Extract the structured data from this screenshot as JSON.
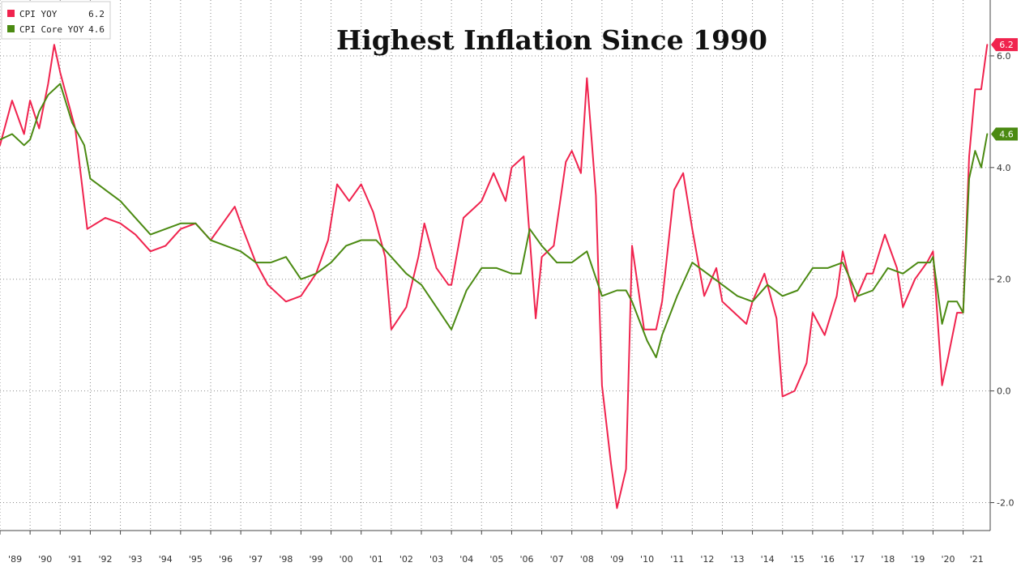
{
  "chart_data": {
    "type": "line",
    "title": "Highest Inflation Since 1990",
    "xlabel": "",
    "ylabel": "",
    "ylim": [
      -2.5,
      7.0
    ],
    "xlim": [
      1989.0,
      2021.9
    ],
    "y_ticks": [
      -2.0,
      0.0,
      2.0,
      4.0,
      6.0
    ],
    "y_tick_labels": [
      "-2.0",
      "0.0",
      "2.0",
      "4.0",
      "6.0"
    ],
    "x_ticks": [
      1989,
      1990,
      1991,
      1992,
      1993,
      1994,
      1995,
      1996,
      1997,
      1998,
      1999,
      2000,
      2001,
      2002,
      2003,
      2004,
      2005,
      2006,
      2007,
      2008,
      2009,
      2010,
      2011,
      2012,
      2013,
      2014,
      2015,
      2016,
      2017,
      2018,
      2019,
      2020,
      2021
    ],
    "x_tick_labels": [
      "'89",
      "'90",
      "'91",
      "'92",
      "'93",
      "'94",
      "'95",
      "'96",
      "'97",
      "'98",
      "'99",
      "'00",
      "'01",
      "'02",
      "'03",
      "'04",
      "'05",
      "'06",
      "'07",
      "'08",
      "'09",
      "'10",
      "'11",
      "'12",
      "'13",
      "'14",
      "'15",
      "'16",
      "'17",
      "'18",
      "'19",
      "'20",
      "'21"
    ],
    "grid": true,
    "legend_position": "top-left",
    "series": [
      {
        "name": "CPI YOY",
        "legend_value": "6.2",
        "last_label": "6.2",
        "color": "#f0234e",
        "x": [
          1989.0,
          1989.4,
          1989.8,
          1990.0,
          1990.3,
          1990.6,
          1990.8,
          1991.0,
          1991.5,
          1991.9,
          1992.5,
          1993.0,
          1993.5,
          1994.0,
          1994.5,
          1995.0,
          1995.5,
          1996.0,
          1996.4,
          1996.8,
          1997.0,
          1997.5,
          1997.9,
          1998.5,
          1999.0,
          1999.5,
          1999.9,
          2000.2,
          2000.6,
          2001.0,
          2001.4,
          2001.8,
          2002.0,
          2002.5,
          2002.9,
          2003.1,
          2003.5,
          2003.9,
          2004.0,
          2004.4,
          2004.8,
          2005.0,
          2005.4,
          2005.8,
          2006.0,
          2006.4,
          2006.8,
          2007.0,
          2007.4,
          2007.8,
          2008.0,
          2008.3,
          2008.5,
          2008.8,
          2009.0,
          2009.3,
          2009.5,
          2009.8,
          2010.0,
          2010.4,
          2010.8,
          2011.0,
          2011.4,
          2011.7,
          2012.0,
          2012.4,
          2012.8,
          2013.0,
          2013.4,
          2013.8,
          2014.0,
          2014.4,
          2014.8,
          2015.0,
          2015.4,
          2015.8,
          2016.0,
          2016.4,
          2016.8,
          2017.0,
          2017.4,
          2017.8,
          2018.0,
          2018.4,
          2018.8,
          2019.0,
          2019.4,
          2019.8,
          2020.0,
          2020.3,
          2020.5,
          2020.8,
          2021.0,
          2021.2,
          2021.4,
          2021.6,
          2021.8
        ],
        "values": [
          4.4,
          5.2,
          4.6,
          5.2,
          4.7,
          5.5,
          6.2,
          5.7,
          4.7,
          2.9,
          3.1,
          3.0,
          2.8,
          2.5,
          2.6,
          2.9,
          3.0,
          2.7,
          3.0,
          3.3,
          3.0,
          2.3,
          1.9,
          1.6,
          1.7,
          2.1,
          2.7,
          3.7,
          3.4,
          3.7,
          3.2,
          2.4,
          1.1,
          1.5,
          2.4,
          3.0,
          2.2,
          1.9,
          1.9,
          3.1,
          3.3,
          3.4,
          3.9,
          3.4,
          4.0,
          4.2,
          1.3,
          2.4,
          2.6,
          4.1,
          4.3,
          3.9,
          5.6,
          3.5,
          0.1,
          -1.3,
          -2.1,
          -1.4,
          2.6,
          1.1,
          1.1,
          1.6,
          3.6,
          3.9,
          2.9,
          1.7,
          2.2,
          1.6,
          1.4,
          1.2,
          1.6,
          2.1,
          1.3,
          -0.1,
          0.0,
          0.5,
          1.4,
          1.0,
          1.7,
          2.5,
          1.6,
          2.1,
          2.1,
          2.8,
          2.2,
          1.5,
          2.0,
          2.3,
          2.5,
          0.1,
          0.6,
          1.4,
          1.4,
          4.2,
          5.4,
          5.4,
          6.2
        ]
      },
      {
        "name": "CPI Core YOY",
        "legend_value": "4.6",
        "last_label": "4.6",
        "color": "#4b8a12",
        "x": [
          1989.0,
          1989.4,
          1989.8,
          1990.0,
          1990.3,
          1990.6,
          1991.0,
          1991.4,
          1991.8,
          1992.0,
          1992.5,
          1993.0,
          1993.5,
          1994.0,
          1994.5,
          1995.0,
          1995.5,
          1996.0,
          1996.5,
          1997.0,
          1997.5,
          1998.0,
          1998.5,
          1999.0,
          1999.5,
          2000.0,
          2000.5,
          2001.0,
          2001.5,
          2002.0,
          2002.5,
          2003.0,
          2003.5,
          2004.0,
          2004.5,
          2005.0,
          2005.5,
          2006.0,
          2006.3,
          2006.6,
          2007.0,
          2007.5,
          2008.0,
          2008.5,
          2009.0,
          2009.5,
          2009.8,
          2010.0,
          2010.5,
          2010.8,
          2011.0,
          2011.5,
          2012.0,
          2012.5,
          2013.0,
          2013.5,
          2014.0,
          2014.5,
          2015.0,
          2015.5,
          2016.0,
          2016.5,
          2017.0,
          2017.5,
          2018.0,
          2018.5,
          2019.0,
          2019.5,
          2019.9,
          2020.0,
          2020.3,
          2020.5,
          2020.8,
          2021.0,
          2021.2,
          2021.4,
          2021.6,
          2021.8
        ],
        "values": [
          4.5,
          4.6,
          4.4,
          4.5,
          5.0,
          5.3,
          5.5,
          4.8,
          4.4,
          3.8,
          3.6,
          3.4,
          3.1,
          2.8,
          2.9,
          3.0,
          3.0,
          2.7,
          2.6,
          2.5,
          2.3,
          2.3,
          2.4,
          2.0,
          2.1,
          2.3,
          2.6,
          2.7,
          2.7,
          2.4,
          2.1,
          1.9,
          1.5,
          1.1,
          1.8,
          2.2,
          2.2,
          2.1,
          2.1,
          2.9,
          2.6,
          2.3,
          2.3,
          2.5,
          1.7,
          1.8,
          1.8,
          1.6,
          0.9,
          0.6,
          1.0,
          1.7,
          2.3,
          2.1,
          1.9,
          1.7,
          1.6,
          1.9,
          1.7,
          1.8,
          2.2,
          2.2,
          2.3,
          1.7,
          1.8,
          2.2,
          2.1,
          2.3,
          2.3,
          2.4,
          1.2,
          1.6,
          1.6,
          1.4,
          3.8,
          4.3,
          4.0,
          4.6
        ]
      }
    ]
  }
}
